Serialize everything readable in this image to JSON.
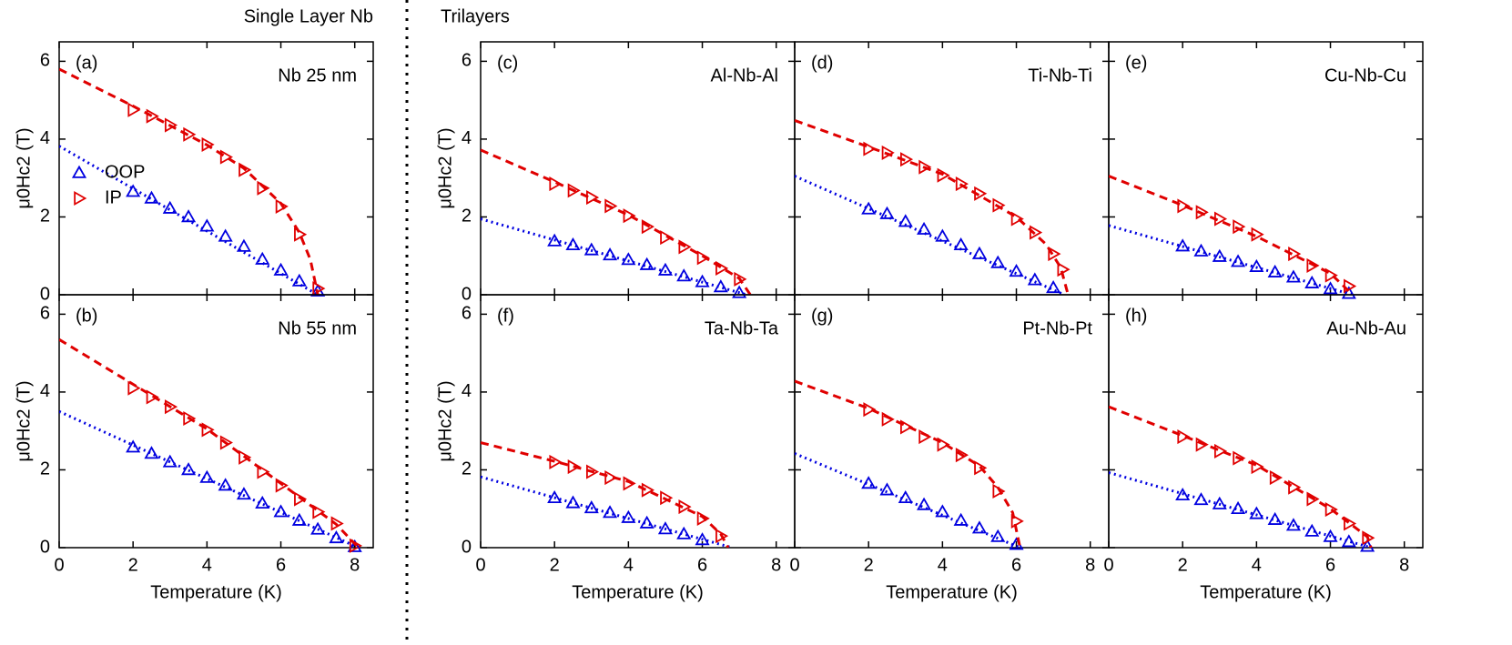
{
  "headers": [
    "Single Layer Nb",
    "Trilayers"
  ],
  "chart_data": [
    {
      "type": "scatter",
      "label": "(a)",
      "title": "Nb 25 nm",
      "ylabel": "μ0Hc2 (T)",
      "legend": "left",
      "xlim": [
        0,
        8.5
      ],
      "xticks": [
        0,
        2,
        4,
        6,
        8
      ],
      "ylim": [
        0,
        6.5
      ],
      "yticks": [
        0,
        2,
        4,
        6
      ],
      "series": [
        {
          "name": "OOP",
          "color": "#0000e0",
          "marker": "up",
          "x": [
            2,
            2.5,
            3,
            3.5,
            4,
            4.5,
            5,
            5.5,
            6,
            6.5,
            7
          ],
          "values": [
            2.65,
            2.48,
            2.22,
            2.0,
            1.76,
            1.5,
            1.24,
            0.91,
            0.63,
            0.35,
            0.09
          ]
        },
        {
          "name": "IP",
          "color": "#e00000",
          "marker": "right",
          "x": [
            2,
            2.5,
            3,
            3.5,
            4,
            4.5,
            5,
            5.5,
            6,
            6.5,
            7
          ],
          "values": [
            4.75,
            4.59,
            4.36,
            4.12,
            3.86,
            3.54,
            3.21,
            2.74,
            2.27,
            1.55,
            0.16
          ]
        },
        {
          "color": "#0000e0",
          "style": "dotted",
          "x": [
            0,
            7
          ],
          "values": [
            3.82,
            0
          ]
        },
        {
          "color": "#e00000",
          "style": "dashed",
          "x": [
            0,
            2,
            4,
            5,
            6,
            6.5,
            6.8,
            7
          ],
          "values": [
            5.8,
            4.85,
            3.85,
            3.25,
            2.35,
            1.6,
            0.9,
            0
          ]
        }
      ]
    },
    {
      "type": "scatter",
      "label": "(b)",
      "title": "Nb 55 nm",
      "ylabel": "μ0Hc2 (T)",
      "xlabel": "Temperature (K)",
      "xlim": [
        0,
        8.5
      ],
      "xticks": [
        0,
        2,
        4,
        6,
        8
      ],
      "ylim": [
        0,
        6.5
      ],
      "yticks": [
        0,
        2,
        4,
        6
      ],
      "series": [
        {
          "color": "#0000e0",
          "marker": "up",
          "x": [
            2,
            2.5,
            3,
            3.5,
            4,
            4.5,
            5,
            5.5,
            6,
            6.5,
            7,
            7.5,
            8
          ],
          "values": [
            2.58,
            2.42,
            2.2,
            2.0,
            1.8,
            1.6,
            1.37,
            1.14,
            0.92,
            0.7,
            0.47,
            0.25,
            0.02
          ]
        },
        {
          "color": "#e00000",
          "marker": "right",
          "x": [
            2,
            2.5,
            3,
            3.5,
            4,
            4.5,
            5,
            5.5,
            6,
            6.5,
            7,
            7.5,
            8
          ],
          "values": [
            4.1,
            3.87,
            3.62,
            3.32,
            3.03,
            2.7,
            2.32,
            1.95,
            1.6,
            1.25,
            0.92,
            0.62,
            0.05
          ]
        },
        {
          "color": "#0000e0",
          "style": "dotted",
          "x": [
            0,
            8.1
          ],
          "values": [
            3.5,
            0
          ]
        },
        {
          "color": "#e00000",
          "style": "dashed",
          "x": [
            0,
            2,
            4,
            6,
            7,
            7.5,
            8.1
          ],
          "values": [
            5.35,
            4.2,
            3.05,
            1.65,
            0.95,
            0.6,
            0
          ]
        }
      ]
    },
    {
      "type": "scatter",
      "label": "(c)",
      "title": "Al-Nb-Al",
      "ylabel": "μ0Hc2 (T)",
      "xlim": [
        0,
        8.5
      ],
      "xticks": [
        0,
        2,
        4,
        6,
        8
      ],
      "ylim": [
        0,
        6.5
      ],
      "yticks": [
        0,
        2,
        4,
        6
      ],
      "series": [
        {
          "color": "#0000e0",
          "marker": "up",
          "x": [
            2,
            2.5,
            3,
            3.5,
            4,
            4.5,
            5,
            5.5,
            6,
            6.5,
            7
          ],
          "values": [
            1.38,
            1.28,
            1.15,
            1.02,
            0.9,
            0.77,
            0.63,
            0.48,
            0.33,
            0.2,
            0.05
          ]
        },
        {
          "color": "#e00000",
          "marker": "right",
          "x": [
            2,
            2.5,
            3,
            3.5,
            4,
            4.5,
            5,
            5.5,
            6,
            6.5,
            7
          ],
          "values": [
            2.85,
            2.68,
            2.5,
            2.28,
            2.03,
            1.75,
            1.47,
            1.23,
            0.95,
            0.68,
            0.4
          ]
        },
        {
          "color": "#0000e0",
          "style": "dotted",
          "x": [
            0,
            7.2
          ],
          "values": [
            1.95,
            0
          ]
        },
        {
          "color": "#e00000",
          "style": "dashed",
          "x": [
            0,
            2,
            4,
            6,
            7,
            7.3
          ],
          "values": [
            3.72,
            2.9,
            2.05,
            1.0,
            0.42,
            0
          ]
        }
      ]
    },
    {
      "type": "scatter",
      "label": "(d)",
      "title": "Ti-Nb-Ti",
      "xlim": [
        0,
        8.5
      ],
      "xticks": [
        0,
        2,
        4,
        6,
        8
      ],
      "ylim": [
        0,
        6.5
      ],
      "yticks": [
        0,
        2,
        4,
        6
      ],
      "series": [
        {
          "color": "#0000e0",
          "marker": "up",
          "x": [
            2,
            2.5,
            3,
            3.5,
            4,
            4.5,
            5,
            5.5,
            6,
            6.5,
            7
          ],
          "values": [
            2.2,
            2.08,
            1.88,
            1.68,
            1.5,
            1.28,
            1.05,
            0.82,
            0.6,
            0.38,
            0.18
          ]
        },
        {
          "color": "#e00000",
          "marker": "right",
          "x": [
            2,
            2.5,
            3,
            3.5,
            4,
            4.5,
            5,
            5.5,
            6,
            6.5,
            7,
            7.25
          ],
          "values": [
            3.75,
            3.65,
            3.48,
            3.28,
            3.07,
            2.85,
            2.6,
            2.3,
            1.95,
            1.6,
            1.05,
            0.65
          ]
        },
        {
          "color": "#0000e0",
          "style": "dotted",
          "x": [
            0,
            7.3
          ],
          "values": [
            3.05,
            0
          ]
        },
        {
          "color": "#e00000",
          "style": "dashed",
          "x": [
            0,
            2,
            4,
            6,
            6.8,
            7.2,
            7.4
          ],
          "values": [
            4.48,
            3.8,
            3.1,
            2.0,
            1.3,
            0.7,
            0
          ]
        }
      ]
    },
    {
      "type": "scatter",
      "label": "(e)",
      "title": "Cu-Nb-Cu",
      "xlim": [
        0,
        8.5
      ],
      "xticks": [
        0,
        2,
        4,
        6,
        8
      ],
      "ylim": [
        0,
        6.5
      ],
      "yticks": [
        0,
        2,
        4,
        6
      ],
      "series": [
        {
          "color": "#0000e0",
          "marker": "up",
          "x": [
            2,
            2.5,
            3,
            3.5,
            4,
            4.5,
            5,
            5.5,
            6,
            6.5
          ],
          "values": [
            1.25,
            1.12,
            0.98,
            0.85,
            0.72,
            0.58,
            0.45,
            0.3,
            0.15,
            0.03
          ]
        },
        {
          "color": "#e00000",
          "marker": "right",
          "x": [
            2,
            2.5,
            3,
            3.5,
            4,
            5,
            5.5,
            6,
            6.5
          ],
          "values": [
            2.28,
            2.12,
            1.95,
            1.75,
            1.55,
            1.05,
            0.75,
            0.5,
            0.22
          ]
        },
        {
          "color": "#0000e0",
          "style": "dotted",
          "x": [
            0,
            6.6
          ],
          "values": [
            1.78,
            0
          ]
        },
        {
          "color": "#e00000",
          "style": "dashed",
          "x": [
            0,
            2,
            4,
            6,
            6.6
          ],
          "values": [
            3.05,
            2.3,
            1.5,
            0.55,
            0
          ]
        }
      ]
    },
    {
      "type": "scatter",
      "label": "(f)",
      "title": "Ta-Nb-Ta",
      "ylabel": "μ0Hc2 (T)",
      "xlabel": "Temperature (K)",
      "xlim": [
        0,
        8.5
      ],
      "xticks": [
        0,
        2,
        4,
        6,
        8
      ],
      "ylim": [
        0,
        6.5
      ],
      "yticks": [
        0,
        2,
        4,
        6
      ],
      "series": [
        {
          "color": "#0000e0",
          "marker": "up",
          "x": [
            2,
            2.5,
            3,
            3.5,
            4,
            4.5,
            5,
            5.5,
            6
          ],
          "values": [
            1.28,
            1.15,
            1.02,
            0.9,
            0.77,
            0.63,
            0.48,
            0.35,
            0.2
          ]
        },
        {
          "color": "#e00000",
          "marker": "right",
          "x": [
            2,
            2.5,
            3,
            3.5,
            4,
            4.5,
            5,
            5.5,
            6,
            6.5
          ],
          "values": [
            2.2,
            2.08,
            1.95,
            1.8,
            1.65,
            1.48,
            1.28,
            1.05,
            0.75,
            0.3
          ]
        },
        {
          "color": "#0000e0",
          "style": "dotted",
          "x": [
            0,
            6.8
          ],
          "values": [
            1.82,
            0
          ]
        },
        {
          "color": "#e00000",
          "style": "dashed",
          "x": [
            0,
            2,
            4,
            6,
            6.5,
            6.7
          ],
          "values": [
            2.7,
            2.22,
            1.7,
            0.8,
            0.35,
            0
          ]
        }
      ]
    },
    {
      "type": "scatter",
      "label": "(g)",
      "title": "Pt-Nb-Pt",
      "xlabel": "Temperature (K)",
      "xlim": [
        0,
        8.5
      ],
      "xticks": [
        0,
        2,
        4,
        6,
        8
      ],
      "ylim": [
        0,
        6.5
      ],
      "yticks": [
        0,
        2,
        4,
        6
      ],
      "series": [
        {
          "color": "#0000e0",
          "marker": "up",
          "x": [
            2,
            2.5,
            3,
            3.5,
            4,
            4.5,
            5,
            5.5,
            6
          ],
          "values": [
            1.65,
            1.48,
            1.28,
            1.1,
            0.92,
            0.7,
            0.5,
            0.28,
            0.08
          ]
        },
        {
          "color": "#e00000",
          "marker": "right",
          "x": [
            2,
            2.5,
            3,
            3.5,
            4,
            4.5,
            5,
            5.5,
            6
          ],
          "values": [
            3.55,
            3.3,
            3.1,
            2.85,
            2.65,
            2.38,
            2.05,
            1.45,
            0.68
          ]
        },
        {
          "color": "#0000e0",
          "style": "dotted",
          "x": [
            0,
            6.1
          ],
          "values": [
            2.42,
            0
          ]
        },
        {
          "color": "#e00000",
          "style": "dashed",
          "x": [
            0,
            2,
            4,
            5,
            5.5,
            5.9,
            6.1
          ],
          "values": [
            4.28,
            3.58,
            2.7,
            2.1,
            1.55,
            0.9,
            0
          ]
        }
      ]
    },
    {
      "type": "scatter",
      "label": "(h)",
      "title": "Au-Nb-Au",
      "xlabel": "Temperature (K)",
      "xlim": [
        0,
        8.5
      ],
      "xticks": [
        0,
        2,
        4,
        6,
        8
      ],
      "ylim": [
        0,
        6.5
      ],
      "yticks": [
        0,
        2,
        4,
        6
      ],
      "series": [
        {
          "color": "#0000e0",
          "marker": "up",
          "x": [
            2,
            2.5,
            3,
            3.5,
            4,
            4.5,
            5,
            5.5,
            6,
            6.5,
            7
          ],
          "values": [
            1.35,
            1.23,
            1.12,
            1.0,
            0.87,
            0.72,
            0.57,
            0.42,
            0.28,
            0.15,
            0.03
          ]
        },
        {
          "color": "#e00000",
          "marker": "right",
          "x": [
            2,
            2.5,
            3,
            3.5,
            4,
            4.5,
            5,
            5.5,
            6,
            6.5,
            7
          ],
          "values": [
            2.85,
            2.65,
            2.48,
            2.3,
            2.08,
            1.8,
            1.55,
            1.25,
            0.98,
            0.62,
            0.25
          ]
        },
        {
          "color": "#0000e0",
          "style": "dotted",
          "x": [
            0,
            7.1
          ],
          "values": [
            1.93,
            0
          ]
        },
        {
          "color": "#e00000",
          "style": "dashed",
          "x": [
            0,
            2,
            4,
            6,
            7,
            7.1
          ],
          "values": [
            3.62,
            2.88,
            2.12,
            1.0,
            0.28,
            0
          ]
        }
      ]
    }
  ]
}
